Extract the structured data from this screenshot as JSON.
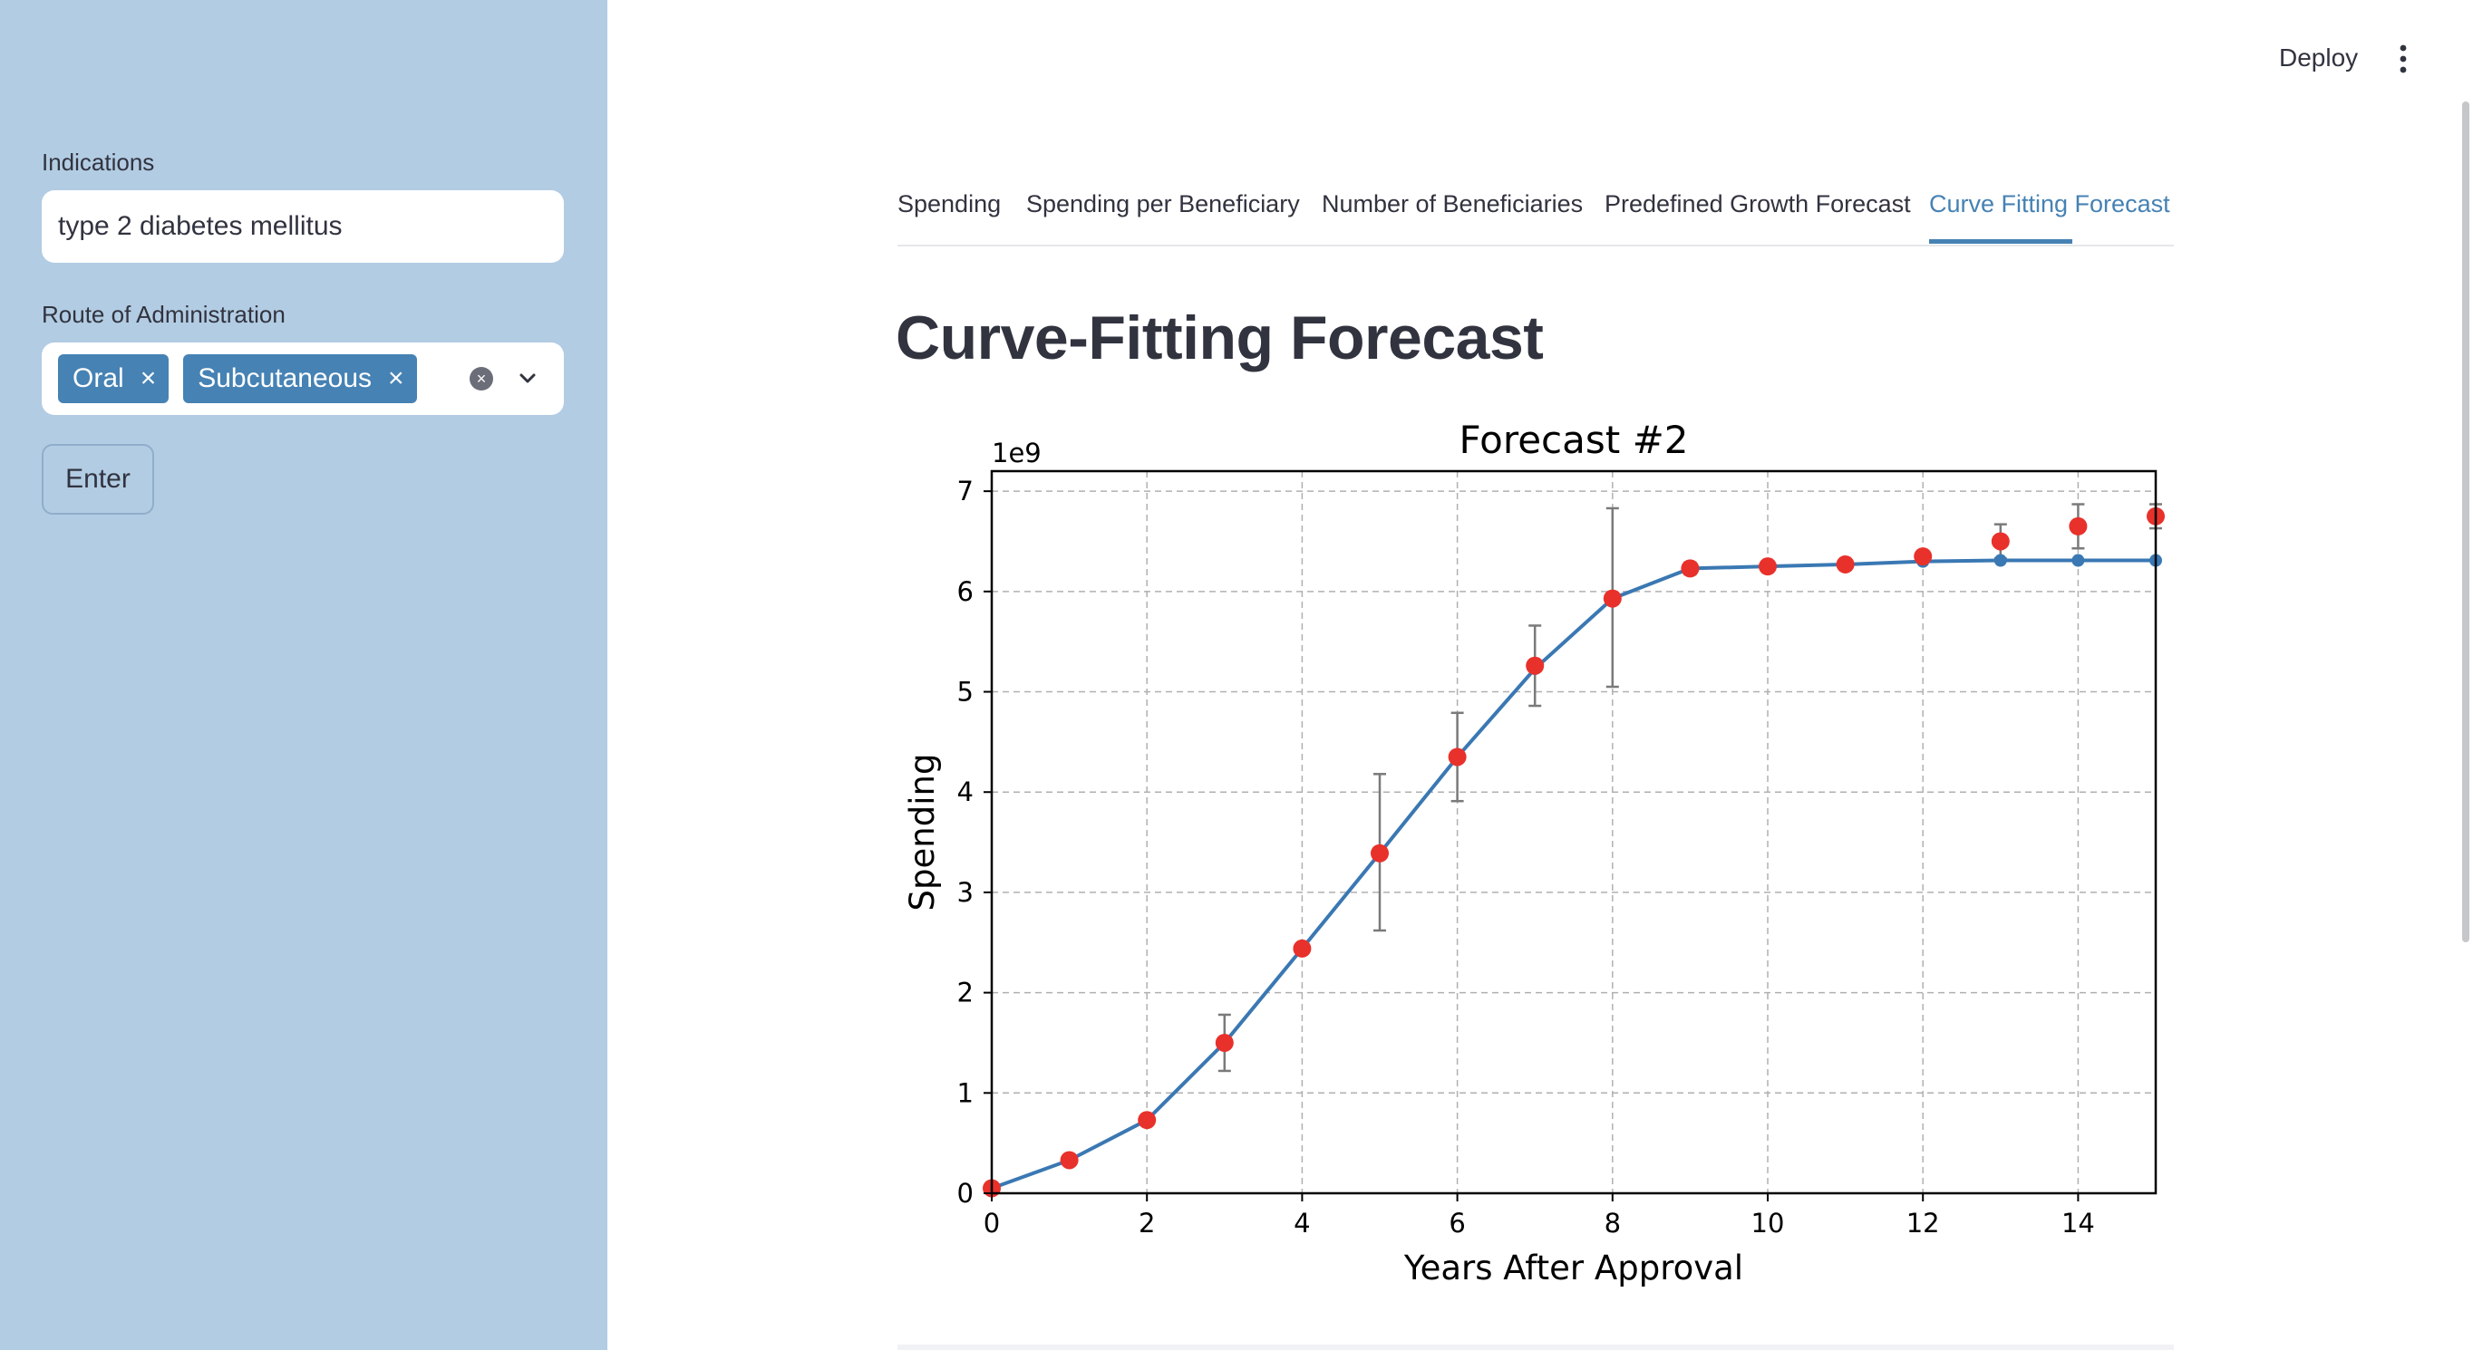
{
  "sidebar": {
    "indications_label": "Indications",
    "indications_value": "type 2 diabetes mellitus",
    "route_label": "Route of Administration",
    "route_chips": [
      "Oral",
      "Subcutaneous"
    ],
    "enter_label": "Enter"
  },
  "header": {
    "deploy_label": "Deploy"
  },
  "tabs": [
    {
      "label": "Spending"
    },
    {
      "label": "Spending per Beneficiary"
    },
    {
      "label": "Number of Beneficiaries"
    },
    {
      "label": "Predefined Growth Forecast"
    },
    {
      "label": "Curve Fitting Forecast"
    }
  ],
  "active_tab": "Curve Fitting Forecast",
  "page_title": "Curve-Fitting Forecast",
  "colors": {
    "accent": "#4682b4",
    "sidebar_bg": "#b2cce3",
    "marker": "#e8312b"
  },
  "chart_data": {
    "type": "line",
    "title": "Forecast #2",
    "xlabel": "Years After Approval",
    "ylabel": "Spending",
    "y_scale_label": "1e9",
    "xlim": [
      0,
      15
    ],
    "ylim": [
      0,
      7.2
    ],
    "xticks": [
      "0",
      "2",
      "4",
      "6",
      "8",
      "10",
      "12",
      "14"
    ],
    "yticks": [
      "0",
      "1",
      "2",
      "3",
      "4",
      "5",
      "6",
      "7"
    ],
    "grid": true,
    "fitted_line": {
      "x": [
        0,
        1,
        2,
        3,
        4,
        5,
        6,
        7,
        8,
        9,
        10,
        11,
        12,
        13,
        14,
        15
      ],
      "y": [
        0.05,
        0.33,
        0.73,
        1.5,
        2.44,
        3.39,
        4.35,
        5.23,
        5.93,
        6.23,
        6.25,
        6.27,
        6.3,
        6.31,
        6.31,
        6.31
      ]
    },
    "observed": {
      "x": [
        0,
        1,
        2,
        3,
        4,
        5,
        6,
        7,
        8,
        9,
        10,
        11,
        12,
        13,
        14,
        15
      ],
      "y": [
        0.05,
        0.33,
        0.73,
        1.5,
        2.44,
        3.39,
        4.35,
        5.26,
        5.93,
        6.23,
        6.25,
        6.27,
        6.35,
        6.5,
        6.65,
        6.75
      ],
      "err_low": [
        0.0,
        0.0,
        0.05,
        0.28,
        0.0,
        0.77,
        0.44,
        0.4,
        0.88,
        0.06,
        0.04,
        0.03,
        0.04,
        0.17,
        0.22,
        0.12
      ],
      "err_high": [
        0.0,
        0.0,
        0.05,
        0.28,
        0.0,
        0.79,
        0.44,
        0.4,
        0.9,
        0.06,
        0.04,
        0.03,
        0.04,
        0.17,
        0.22,
        0.12
      ]
    }
  }
}
